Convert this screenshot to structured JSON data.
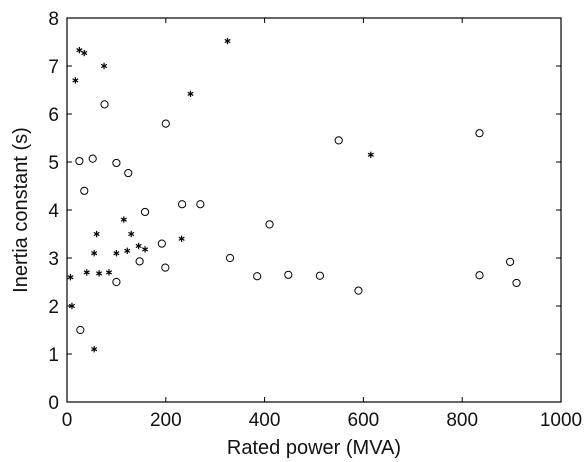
{
  "chart_data": {
    "type": "scatter",
    "title": "",
    "xlabel": "Rated power (MVA)",
    "ylabel": "Inertia constant (s)",
    "xlim": [
      0,
      1000
    ],
    "ylim": [
      0,
      8
    ],
    "xticks": [
      0,
      200,
      400,
      600,
      800,
      1000
    ],
    "yticks": [
      0,
      1,
      2,
      3,
      4,
      5,
      6,
      7,
      8
    ],
    "grid": false,
    "legend": "none",
    "series": [
      {
        "marker": "open-circle",
        "color": "#000000",
        "points": [
          {
            "x": 27,
            "y": 1.5
          },
          {
            "x": 25,
            "y": 5.02
          },
          {
            "x": 35,
            "y": 4.4
          },
          {
            "x": 52,
            "y": 5.07
          },
          {
            "x": 76,
            "y": 6.2
          },
          {
            "x": 100,
            "y": 4.98
          },
          {
            "x": 100,
            "y": 2.5
          },
          {
            "x": 124,
            "y": 4.77
          },
          {
            "x": 147,
            "y": 2.93
          },
          {
            "x": 158,
            "y": 3.96
          },
          {
            "x": 192,
            "y": 3.3
          },
          {
            "x": 199,
            "y": 2.8
          },
          {
            "x": 200,
            "y": 5.8
          },
          {
            "x": 233,
            "y": 4.12
          },
          {
            "x": 270,
            "y": 4.12
          },
          {
            "x": 330,
            "y": 3.0
          },
          {
            "x": 385,
            "y": 2.62
          },
          {
            "x": 410,
            "y": 3.7
          },
          {
            "x": 448,
            "y": 2.65
          },
          {
            "x": 512,
            "y": 2.63
          },
          {
            "x": 550,
            "y": 5.45
          },
          {
            "x": 590,
            "y": 2.32
          },
          {
            "x": 835,
            "y": 5.6
          },
          {
            "x": 835,
            "y": 2.64
          },
          {
            "x": 897,
            "y": 2.92
          },
          {
            "x": 910,
            "y": 2.48
          }
        ]
      },
      {
        "marker": "asterisk",
        "color": "#000000",
        "points": [
          {
            "x": 7,
            "y": 2.6
          },
          {
            "x": 10,
            "y": 2.0
          },
          {
            "x": 17,
            "y": 6.7
          },
          {
            "x": 25,
            "y": 7.33
          },
          {
            "x": 35,
            "y": 7.27
          },
          {
            "x": 40,
            "y": 2.7
          },
          {
            "x": 55,
            "y": 3.1
          },
          {
            "x": 55,
            "y": 1.1
          },
          {
            "x": 60,
            "y": 3.5
          },
          {
            "x": 65,
            "y": 2.68
          },
          {
            "x": 75,
            "y": 7.0
          },
          {
            "x": 85,
            "y": 2.7
          },
          {
            "x": 100,
            "y": 3.1
          },
          {
            "x": 115,
            "y": 3.8
          },
          {
            "x": 122,
            "y": 3.15
          },
          {
            "x": 130,
            "y": 3.5
          },
          {
            "x": 145,
            "y": 3.25
          },
          {
            "x": 158,
            "y": 3.18
          },
          {
            "x": 232,
            "y": 3.4
          },
          {
            "x": 250,
            "y": 6.42
          },
          {
            "x": 325,
            "y": 7.52
          },
          {
            "x": 615,
            "y": 5.15
          }
        ]
      }
    ]
  }
}
